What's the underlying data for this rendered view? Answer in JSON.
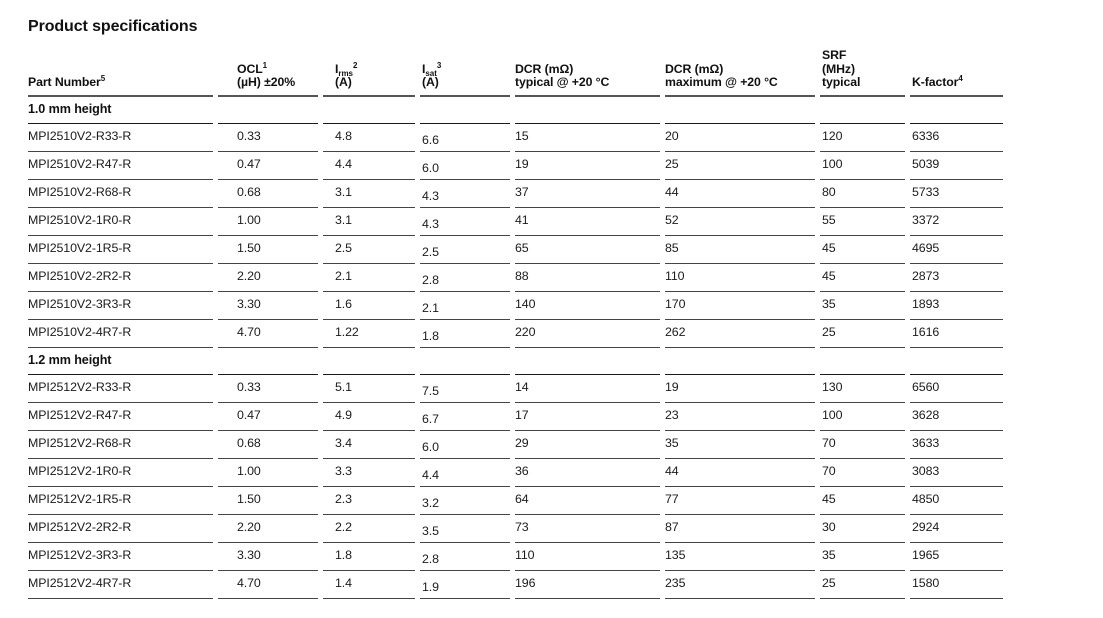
{
  "page_title": "Product specifications",
  "table": {
    "columns": [
      {
        "id": "part_number",
        "line1": "Part Number",
        "sup": "5"
      },
      {
        "id": "ocl",
        "line1": "OCL",
        "sup": "1",
        "line2": "(µH) ±20%"
      },
      {
        "id": "irms",
        "line1": "I",
        "sub": "rms",
        "sup": "2",
        "line2": "(A)"
      },
      {
        "id": "isat",
        "line1": "I",
        "sub": "sat",
        "sup": "3",
        "line2": "(A)"
      },
      {
        "id": "dcr_typical",
        "line1": "DCR (mΩ)",
        "line2": "typical @ +20 °C"
      },
      {
        "id": "dcr_maximum",
        "line1": "DCR (mΩ)",
        "line2": "maximum @ +20 °C"
      },
      {
        "id": "srf",
        "line1": "SRF",
        "line2": "(MHz)",
        "line3": "typical"
      },
      {
        "id": "k_factor",
        "line1": "K-factor",
        "sup": "4"
      }
    ],
    "sections": [
      {
        "heading": "1.0 mm height",
        "rows": [
          {
            "part_number": "MPI2510V2-R33-R",
            "ocl": "0.33",
            "irms": "4.8",
            "isat": "6.6",
            "dcr_typical": "15",
            "dcr_maximum": "20",
            "srf": "120",
            "k_factor": "6336"
          },
          {
            "part_number": "MPI2510V2-R47-R",
            "ocl": "0.47",
            "irms": "4.4",
            "isat": "6.0",
            "dcr_typical": "19",
            "dcr_maximum": "25",
            "srf": "100",
            "k_factor": "5039"
          },
          {
            "part_number": "MPI2510V2-R68-R",
            "ocl": "0.68",
            "irms": "3.1",
            "isat": "4.3",
            "dcr_typical": "37",
            "dcr_maximum": "44",
            "srf": "80",
            "k_factor": "5733"
          },
          {
            "part_number": "MPI2510V2-1R0-R",
            "ocl": "1.00",
            "irms": "3.1",
            "isat": "4.3",
            "dcr_typical": "41",
            "dcr_maximum": "52",
            "srf": "55",
            "k_factor": "3372"
          },
          {
            "part_number": "MPI2510V2-1R5-R",
            "ocl": "1.50",
            "irms": "2.5",
            "isat": "2.5",
            "dcr_typical": "65",
            "dcr_maximum": "85",
            "srf": "45",
            "k_factor": "4695"
          },
          {
            "part_number": "MPI2510V2-2R2-R",
            "ocl": "2.20",
            "irms": "2.1",
            "isat": "2.8",
            "dcr_typical": "88",
            "dcr_maximum": "110",
            "srf": "45",
            "k_factor": "2873"
          },
          {
            "part_number": "MPI2510V2-3R3-R",
            "ocl": "3.30",
            "irms": "1.6",
            "isat": "2.1",
            "dcr_typical": "140",
            "dcr_maximum": "170",
            "srf": "35",
            "k_factor": "1893"
          },
          {
            "part_number": "MPI2510V2-4R7-R",
            "ocl": "4.70",
            "irms": "1.22",
            "isat": "1.8",
            "dcr_typical": "220",
            "dcr_maximum": "262",
            "srf": "25",
            "k_factor": "1616"
          }
        ]
      },
      {
        "heading": "1.2 mm height",
        "rows": [
          {
            "part_number": "MPI2512V2-R33-R",
            "ocl": "0.33",
            "irms": "5.1",
            "isat": "7.5",
            "dcr_typical": "14",
            "dcr_maximum": "19",
            "srf": "130",
            "k_factor": "6560"
          },
          {
            "part_number": "MPI2512V2-R47-R",
            "ocl": "0.47",
            "irms": "4.9",
            "isat": "6.7",
            "dcr_typical": "17",
            "dcr_maximum": "23",
            "srf": "100",
            "k_factor": "3628"
          },
          {
            "part_number": "MPI2512V2-R68-R",
            "ocl": "0.68",
            "irms": "3.4",
            "isat": "6.0",
            "dcr_typical": "29",
            "dcr_maximum": "35",
            "srf": "70",
            "k_factor": "3633"
          },
          {
            "part_number": "MPI2512V2-1R0-R",
            "ocl": "1.00",
            "irms": "3.3",
            "isat": "4.4",
            "dcr_typical": "36",
            "dcr_maximum": "44",
            "srf": "70",
            "k_factor": "3083"
          },
          {
            "part_number": "MPI2512V2-1R5-R",
            "ocl": "1.50",
            "irms": "2.3",
            "isat": "3.2",
            "dcr_typical": "64",
            "dcr_maximum": "77",
            "srf": "45",
            "k_factor": "4850"
          },
          {
            "part_number": "MPI2512V2-2R2-R",
            "ocl": "2.20",
            "irms": "2.2",
            "isat": "3.5",
            "dcr_typical": "73",
            "dcr_maximum": "87",
            "srf": "30",
            "k_factor": "2924"
          },
          {
            "part_number": "MPI2512V2-3R3-R",
            "ocl": "3.30",
            "irms": "1.8",
            "isat": "2.8",
            "dcr_typical": "110",
            "dcr_maximum": "135",
            "srf": "35",
            "k_factor": "1965"
          },
          {
            "part_number": "MPI2512V2-4R7-R",
            "ocl": "4.70",
            "irms": "1.4",
            "isat": "1.9",
            "dcr_typical": "196",
            "dcr_maximum": "235",
            "srf": "25",
            "k_factor": "1580"
          }
        ]
      }
    ]
  }
}
